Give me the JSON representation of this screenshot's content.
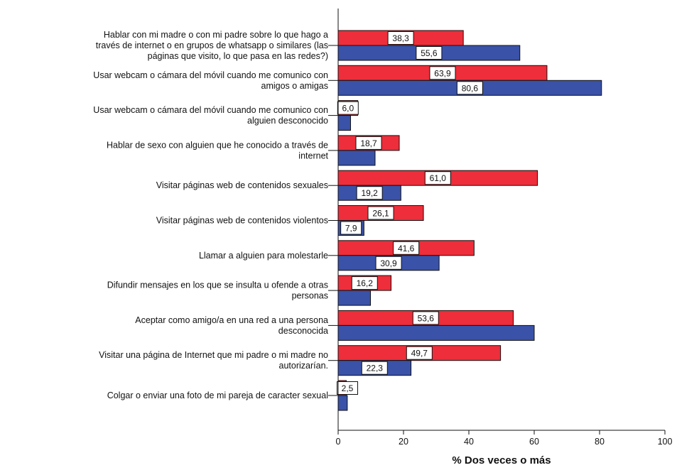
{
  "chart_data": {
    "type": "bar",
    "orientation": "horizontal",
    "categories": [
      [
        "Hablar con mi madre o con mi padre sobre lo que hago a",
        "través de internet o en grupos de whatsapp o similares (las",
        "páginas que visito, lo que pasa en las redes?)"
      ],
      [
        "Usar webcam o cámara del móvil cuando me comunico con",
        "amigos o amigas"
      ],
      [
        "Usar webcam o cámara del móvil cuando me comunico con",
        "alguien desconocido"
      ],
      [
        "Hablar de sexo con alguien que he conocido a través de",
        "internet"
      ],
      [
        "Visitar páginas web de contenidos sexuales"
      ],
      [
        "Visitar páginas web de contenidos violentos"
      ],
      [
        "Llamar a alguien para molestarle"
      ],
      [
        "Difundir mensajes en los que se insulta u ofende a otras",
        "personas"
      ],
      [
        "Aceptar como amigo/a en una red a una persona",
        "desconocida"
      ],
      [
        "Visitar una página de Internet que  mi padre o mi madre no",
        "autorizarían."
      ],
      [
        "Colgar o enviar una foto de mi pareja de caracter sexual"
      ]
    ],
    "series": [
      {
        "color": "#ee2e3a",
        "values": [
          38.3,
          63.9,
          6.0,
          18.7,
          61.0,
          26.1,
          41.6,
          16.2,
          53.6,
          49.7,
          2.5
        ],
        "labels": [
          "38,3",
          "63,9",
          "6,0",
          "18,7",
          "61,0",
          "26,1",
          "41,6",
          "16,2",
          "53,6",
          "49,7",
          "2,5"
        ]
      },
      {
        "color": "#3a52a8",
        "values": [
          55.6,
          80.6,
          3.8,
          11.3,
          19.2,
          7.9,
          30.9,
          9.9,
          60.0,
          22.3,
          2.8
        ],
        "labels": [
          "55,6",
          "80,6",
          "",
          "",
          "19,2",
          "7,9",
          "30,9",
          "",
          "",
          "22,3",
          ""
        ]
      }
    ],
    "xlim": [
      0,
      100
    ],
    "xticks": [
      "0",
      "20",
      "40",
      "60",
      "80",
      "100"
    ],
    "xlabel": "% Dos veces o más",
    "ylabel": "",
    "title": "",
    "grid": false,
    "legend": "none"
  }
}
